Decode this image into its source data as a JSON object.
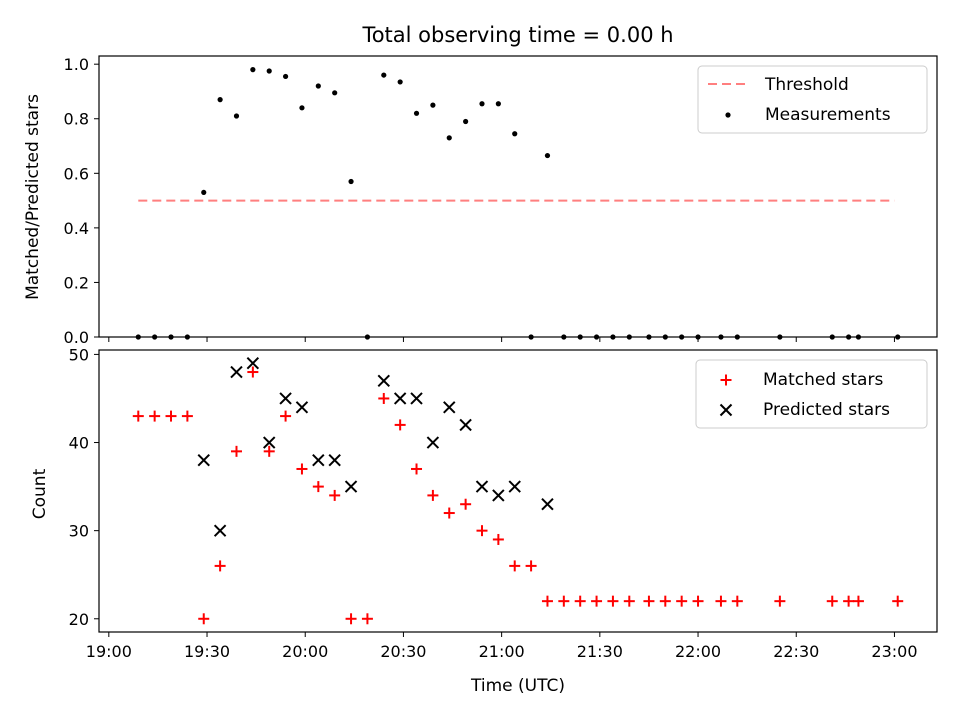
{
  "chart_data": [
    {
      "type": "scatter",
      "title": "Total observing time = 0.00 h",
      "xlabel": "",
      "ylabel": "Matched/Predicted stars",
      "xlim": [
        "18:57",
        "23:13"
      ],
      "ylim": [
        0,
        1.03
      ],
      "yticks": [
        "0.0",
        "0.2",
        "0.4",
        "0.6",
        "0.8",
        "1.0"
      ],
      "xtick_positions": [
        "19:00",
        "19:30",
        "20:00",
        "20:30",
        "21:00",
        "21:30",
        "22:00",
        "22:30",
        "23:00"
      ],
      "grid": false,
      "legend": {
        "placement": "upper right",
        "entries": [
          "Threshold",
          "Measurements"
        ]
      },
      "colors": {
        "threshold": "#ff7f7f",
        "measurements": "#000000"
      },
      "threshold": {
        "name": "Threshold",
        "y": 0.5,
        "x_start": "19:09",
        "x_end": "23:00"
      },
      "series": [
        {
          "name": "Measurements",
          "points": [
            [
              "19:09",
              0.0
            ],
            [
              "19:14",
              0.0
            ],
            [
              "19:19",
              0.0
            ],
            [
              "19:24",
              0.0
            ],
            [
              "19:29",
              0.53
            ],
            [
              "19:34",
              0.87
            ],
            [
              "19:39",
              0.81
            ],
            [
              "19:44",
              0.98
            ],
            [
              "19:49",
              0.975
            ],
            [
              "19:54",
              0.955
            ],
            [
              "19:59",
              0.84
            ],
            [
              "20:04",
              0.92
            ],
            [
              "20:09",
              0.895
            ],
            [
              "20:14",
              0.57
            ],
            [
              "20:19",
              0.0
            ],
            [
              "20:24",
              0.96
            ],
            [
              "20:29",
              0.935
            ],
            [
              "20:34",
              0.82
            ],
            [
              "20:39",
              0.85
            ],
            [
              "20:44",
              0.73
            ],
            [
              "20:49",
              0.79
            ],
            [
              "20:54",
              0.855
            ],
            [
              "20:59",
              0.855
            ],
            [
              "21:04",
              0.745
            ],
            [
              "21:09",
              0.0
            ],
            [
              "21:14",
              0.665
            ],
            [
              "21:19",
              0.0
            ],
            [
              "21:24",
              0.0
            ],
            [
              "21:29",
              0.0
            ],
            [
              "21:34",
              0.0
            ],
            [
              "21:39",
              0.0
            ],
            [
              "21:45",
              0.0
            ],
            [
              "21:50",
              0.0
            ],
            [
              "21:55",
              0.0
            ],
            [
              "22:00",
              0.0
            ],
            [
              "22:07",
              0.0
            ],
            [
              "22:12",
              0.0
            ],
            [
              "22:25",
              0.0
            ],
            [
              "22:41",
              0.0
            ],
            [
              "22:46",
              0.0
            ],
            [
              "22:49",
              0.0
            ],
            [
              "23:01",
              0.0
            ]
          ]
        }
      ]
    },
    {
      "type": "scatter",
      "title": "",
      "xlabel": "Time (UTC)",
      "ylabel": "Count",
      "xlim": [
        "18:57",
        "23:13"
      ],
      "ylim": [
        18.5,
        50.5
      ],
      "yticks": [
        "20",
        "30",
        "40",
        "50"
      ],
      "xticks": [
        "19:00",
        "19:30",
        "20:00",
        "20:30",
        "21:00",
        "21:30",
        "22:00",
        "22:30",
        "23:00"
      ],
      "grid": false,
      "legend": {
        "placement": "upper right",
        "entries": [
          "Matched stars",
          "Predicted stars"
        ]
      },
      "colors": {
        "matched": "#ff0000",
        "predicted": "#000000"
      },
      "series": [
        {
          "name": "Matched stars",
          "marker": "+",
          "points": [
            [
              "19:09",
              43
            ],
            [
              "19:14",
              43
            ],
            [
              "19:19",
              43
            ],
            [
              "19:24",
              43
            ],
            [
              "19:29",
              20
            ],
            [
              "19:34",
              26
            ],
            [
              "19:39",
              39
            ],
            [
              "19:44",
              48
            ],
            [
              "19:49",
              39
            ],
            [
              "19:54",
              43
            ],
            [
              "19:59",
              37
            ],
            [
              "20:04",
              35
            ],
            [
              "20:09",
              34
            ],
            [
              "20:14",
              20
            ],
            [
              "20:19",
              20
            ],
            [
              "20:24",
              45
            ],
            [
              "20:29",
              42
            ],
            [
              "20:34",
              37
            ],
            [
              "20:39",
              34
            ],
            [
              "20:44",
              32
            ],
            [
              "20:49",
              33
            ],
            [
              "20:54",
              30
            ],
            [
              "20:59",
              29
            ],
            [
              "21:04",
              26
            ],
            [
              "21:09",
              26
            ],
            [
              "21:14",
              22
            ],
            [
              "21:19",
              22
            ],
            [
              "21:24",
              22
            ],
            [
              "21:29",
              22
            ],
            [
              "21:34",
              22
            ],
            [
              "21:39",
              22
            ],
            [
              "21:45",
              22
            ],
            [
              "21:50",
              22
            ],
            [
              "21:55",
              22
            ],
            [
              "22:00",
              22
            ],
            [
              "22:07",
              22
            ],
            [
              "22:12",
              22
            ],
            [
              "22:25",
              22
            ],
            [
              "22:41",
              22
            ],
            [
              "22:46",
              22
            ],
            [
              "22:49",
              22
            ],
            [
              "23:01",
              22
            ]
          ]
        },
        {
          "name": "Predicted stars",
          "marker": "x",
          "points": [
            [
              "19:29",
              38
            ],
            [
              "19:34",
              30
            ],
            [
              "19:39",
              48
            ],
            [
              "19:44",
              49
            ],
            [
              "19:49",
              40
            ],
            [
              "19:54",
              45
            ],
            [
              "19:59",
              44
            ],
            [
              "20:04",
              38
            ],
            [
              "20:09",
              38
            ],
            [
              "20:14",
              35
            ],
            [
              "20:24",
              47
            ],
            [
              "20:29",
              45
            ],
            [
              "20:34",
              45
            ],
            [
              "20:39",
              40
            ],
            [
              "20:44",
              44
            ],
            [
              "20:49",
              42
            ],
            [
              "20:54",
              35
            ],
            [
              "20:59",
              34
            ],
            [
              "21:04",
              35
            ],
            [
              "21:14",
              33
            ]
          ]
        }
      ]
    }
  ]
}
